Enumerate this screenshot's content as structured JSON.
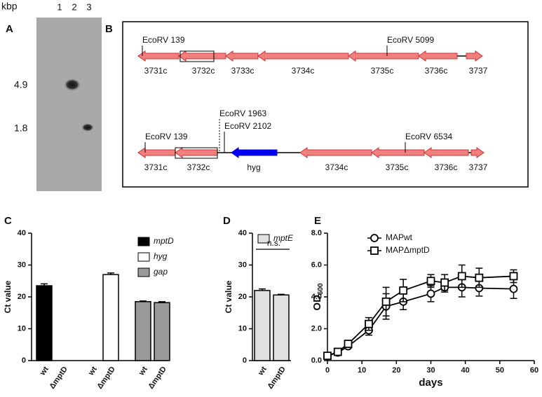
{
  "blot": {
    "panel": "A",
    "unit": "kbp",
    "lanes": [
      "1",
      "2",
      "3"
    ],
    "markers": [
      "4.9",
      "1.8"
    ]
  },
  "map": {
    "panel": "B",
    "rows": [
      {
        "sites": [
          "EcoRV 139",
          "EcoRV 5099"
        ],
        "genes": [
          "3731c",
          "3732c",
          "3733c",
          "3734c",
          "3735c",
          "3736c",
          "3737"
        ]
      },
      {
        "sites": [
          "EcoRV 139",
          "EcoRV 1963",
          "EcoRV 2102",
          "EcoRV 6534"
        ],
        "genes": [
          "3731c",
          "3732c",
          "hyg",
          "3734c",
          "3735c",
          "3736c",
          "3737"
        ]
      }
    ]
  },
  "chart_data": [
    {
      "type": "bar",
      "panel": "C",
      "ylabel": "Ct value",
      "categories": [
        "wt",
        "ΔmptD",
        "wt",
        "ΔmptD",
        "wt",
        "ΔmptD"
      ],
      "series": [
        {
          "name": "mptD",
          "color": "#000000",
          "values": [
            23.5,
            null,
            null,
            null,
            null,
            null
          ],
          "errors": [
            0.6,
            null,
            null,
            null,
            null,
            null
          ]
        },
        {
          "name": "hyg",
          "color": "#ffffff",
          "values": [
            null,
            null,
            null,
            27,
            null,
            null
          ],
          "errors": [
            null,
            null,
            null,
            0.5,
            null,
            null
          ]
        },
        {
          "name": "gap",
          "color": "#9a9a9a",
          "values": [
            null,
            null,
            null,
            null,
            18.5,
            18.2
          ],
          "errors": [
            null,
            null,
            null,
            null,
            0.2,
            0.3
          ]
        }
      ],
      "ylim": [
        0,
        40
      ],
      "yticks": [
        0,
        10,
        20,
        30,
        40
      ]
    },
    {
      "type": "bar",
      "panel": "D",
      "ylabel": "Ct value",
      "annotation": "n.s.",
      "categories": [
        "wt",
        "ΔmptD"
      ],
      "series": [
        {
          "name": "mptE",
          "color": "#e0e0e0",
          "values": [
            22,
            20.6
          ],
          "errors": [
            0.5,
            0.2
          ]
        }
      ],
      "ylim": [
        0,
        40
      ],
      "yticks": [
        0,
        10,
        20,
        30,
        40
      ]
    },
    {
      "type": "line",
      "panel": "E",
      "xlabel": "days",
      "ylabel": {
        "text": "OD",
        "subscript": "600"
      },
      "x": [
        0,
        3,
        6,
        12,
        17,
        22,
        30,
        34,
        39,
        44,
        54
      ],
      "series": [
        {
          "name": "MAPwt",
          "marker": "circle",
          "color": "#000000",
          "values": [
            0.3,
            0.5,
            0.9,
            1.9,
            3.4,
            3.7,
            4.2,
            4.6,
            4.6,
            4.55,
            4.5
          ],
          "errors": [
            0.1,
            0.1,
            0.1,
            0.3,
            0.8,
            0.5,
            0.5,
            0.3,
            0.6,
            0.5,
            0.6
          ]
        },
        {
          "name": "MAPΔmptD",
          "marker": "square",
          "color": "#000000",
          "values": [
            0.3,
            0.55,
            1.05,
            2.3,
            3.7,
            4.4,
            5.0,
            4.9,
            5.3,
            5.2,
            5.3
          ],
          "errors": [
            0.1,
            0.1,
            0.1,
            0.4,
            0.9,
            0.7,
            0.4,
            0.5,
            0.7,
            0.6,
            0.4
          ]
        }
      ],
      "xlim": [
        0,
        60
      ],
      "xticks": [
        0,
        10,
        20,
        30,
        40,
        50,
        60
      ],
      "ylim": [
        0,
        8
      ],
      "yticks": [
        {
          "value": 0,
          "label": "0.0"
        },
        {
          "value": 2,
          "label": "2.0"
        },
        {
          "value": 4,
          "label": "4.0"
        },
        {
          "value": 6,
          "label": "6.0"
        },
        {
          "value": 8,
          "label": "8.0"
        }
      ]
    }
  ]
}
